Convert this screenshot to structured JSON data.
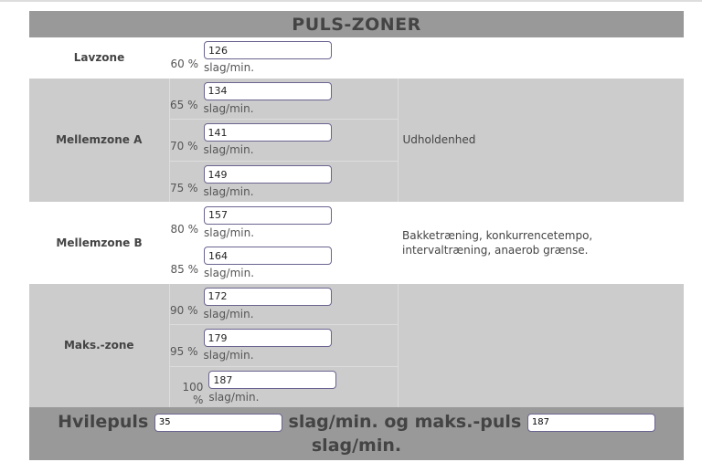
{
  "title": "PULS-ZONER",
  "unit": "slag/min.",
  "zones": [
    {
      "name": "Lavzone",
      "description": "",
      "rows": [
        {
          "pct": "60 %",
          "value": "126"
        }
      ]
    },
    {
      "name": "Mellemzone A",
      "description": "Udholdenhed",
      "rows": [
        {
          "pct": "65 %",
          "value": "134"
        },
        {
          "pct": "70 %",
          "value": "141"
        },
        {
          "pct": "75 %",
          "value": "149"
        }
      ]
    },
    {
      "name": "Mellemzone B",
      "description": "Bakketræning, konkurrencetempo, intervaltræning, anaerob grænse.",
      "rows": [
        {
          "pct": "80 %",
          "value": "157"
        },
        {
          "pct": "85 %",
          "value": "164"
        }
      ]
    },
    {
      "name": "Maks.-zone",
      "description": "",
      "rows": [
        {
          "pct": "90 %",
          "value": "172"
        },
        {
          "pct": "95 %",
          "value": "179"
        },
        {
          "pct": "100 %",
          "value": "187"
        }
      ]
    }
  ],
  "footer": {
    "label_rest": "Hvilepuls",
    "rest_value": "35",
    "label_middle": "slag/min. og maks.-puls",
    "max_value": "187",
    "label_end": "slag/min."
  }
}
